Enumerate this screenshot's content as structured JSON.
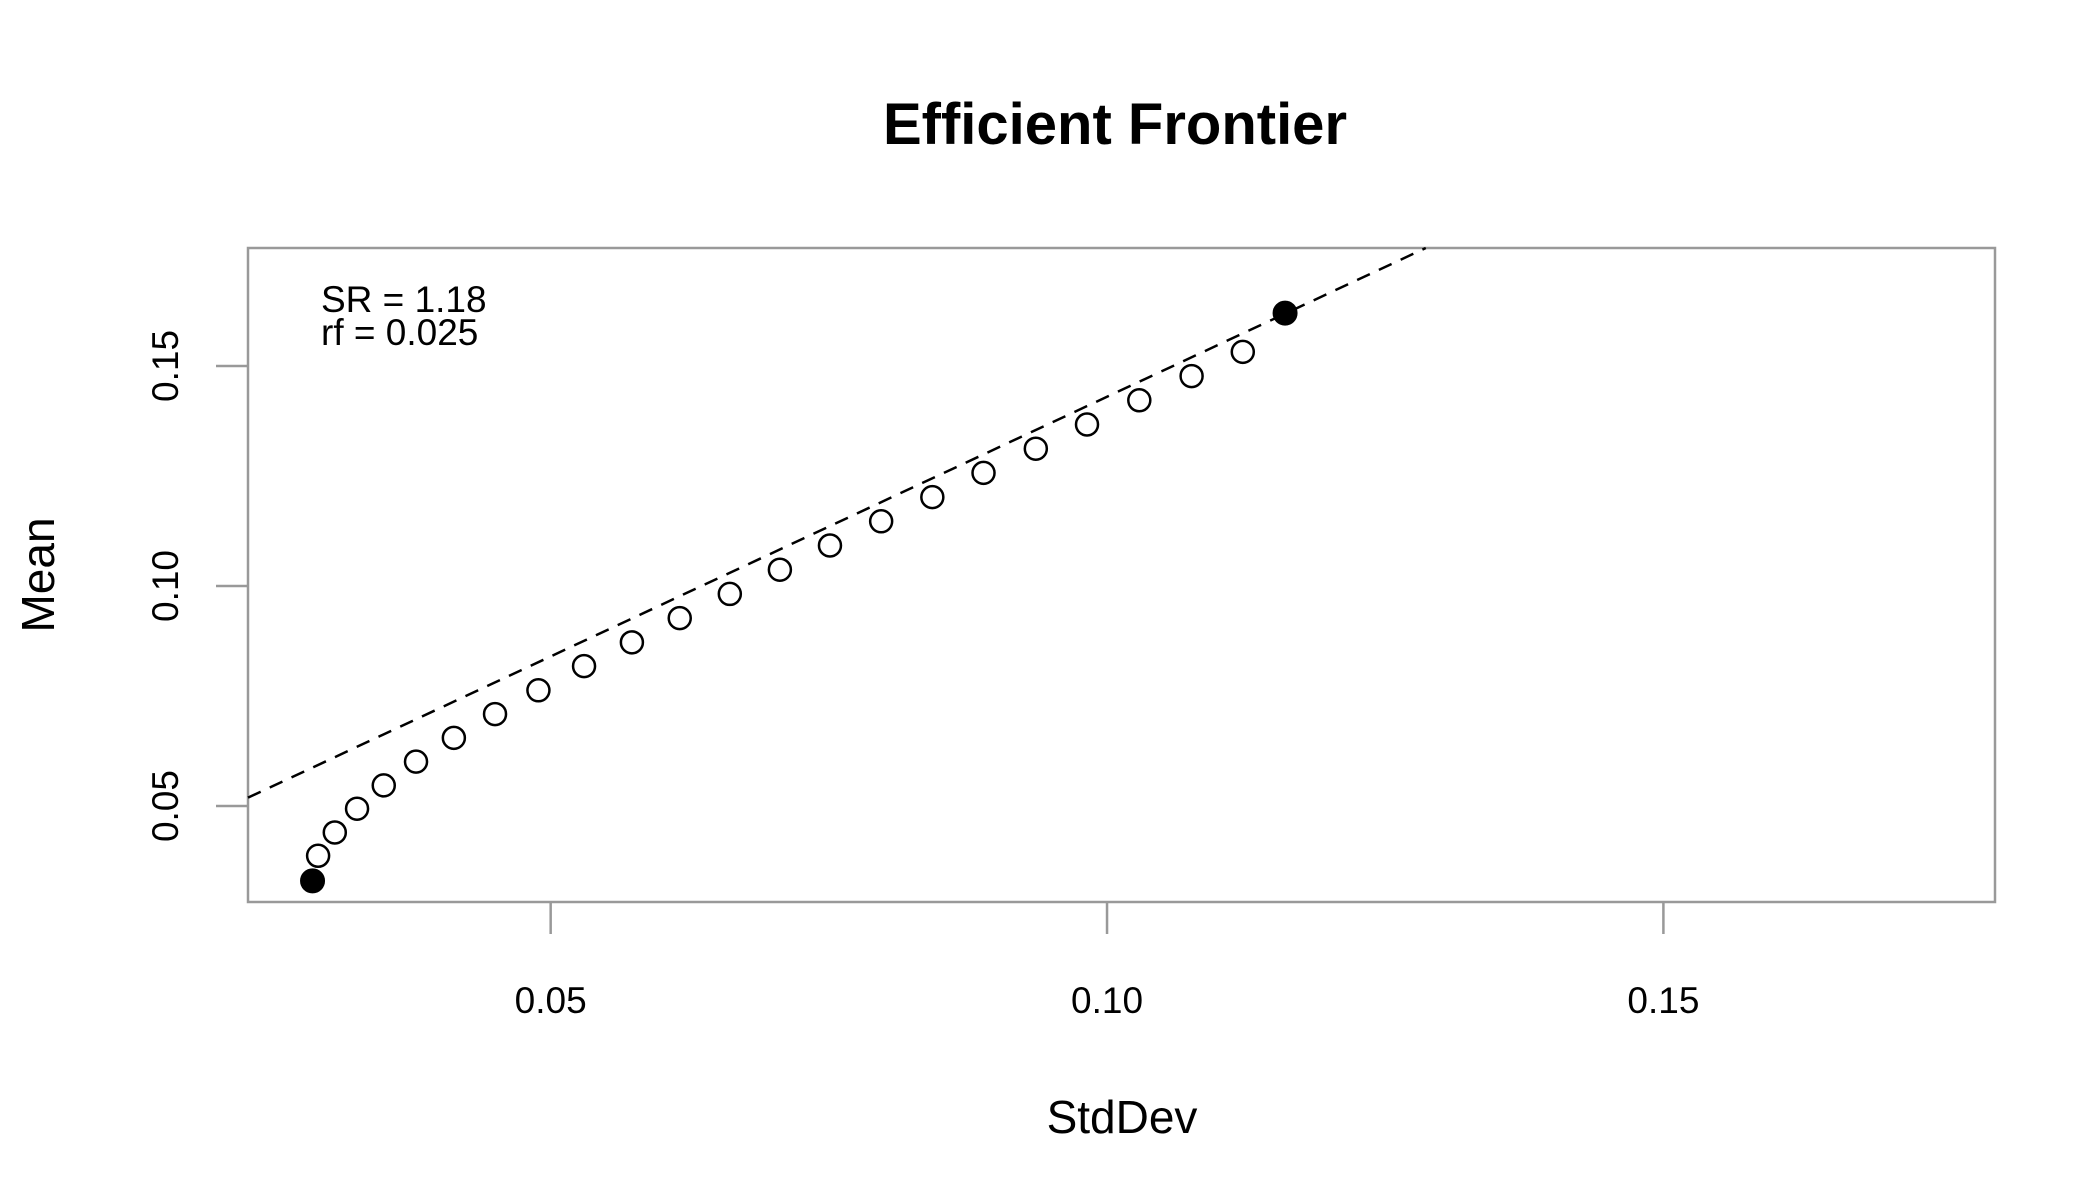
{
  "chart_data": {
    "type": "scatter",
    "title": "Efficient Frontier",
    "xlabel": "StdDev",
    "ylabel": "Mean",
    "xlim": [
      0.0228,
      0.1798
    ],
    "ylim": [
      0.0282,
      0.1768
    ],
    "xticks": [
      0.05,
      0.1,
      0.15
    ],
    "xtick_labels": [
      "0.05",
      "0.10",
      "0.15"
    ],
    "yticks": [
      0.05,
      0.1,
      0.15
    ],
    "ytick_labels": [
      "0.05",
      "0.10",
      "0.15"
    ],
    "grid": false,
    "annotations": [
      "SR = 1.18",
      "rf = 0.025"
    ],
    "frontier_points": {
      "x": [
        0.0291,
        0.0306,
        0.0326,
        0.035,
        0.0379,
        0.0413,
        0.045,
        0.0489,
        0.053,
        0.0573,
        0.0616,
        0.0661,
        0.0706,
        0.0751,
        0.0797,
        0.0843,
        0.0889,
        0.0936,
        0.0982,
        0.1029,
        0.1076,
        0.1122
      ],
      "y": [
        0.0387,
        0.044,
        0.0494,
        0.0547,
        0.0601,
        0.0655,
        0.0709,
        0.0763,
        0.0818,
        0.0872,
        0.0927,
        0.0982,
        0.1037,
        0.1092,
        0.1147,
        0.1202,
        0.1257,
        0.1312,
        0.1367,
        0.1422,
        0.1477,
        0.1532
      ],
      "marker": "open-circle"
    },
    "highlighted_points": {
      "x": [
        0.0286,
        0.116
      ],
      "y": [
        0.033,
        0.162
      ],
      "marker": "filled-circle"
    },
    "tangency_line": {
      "intercept": 0.025,
      "slope": 1.18,
      "style": "dashed"
    }
  }
}
